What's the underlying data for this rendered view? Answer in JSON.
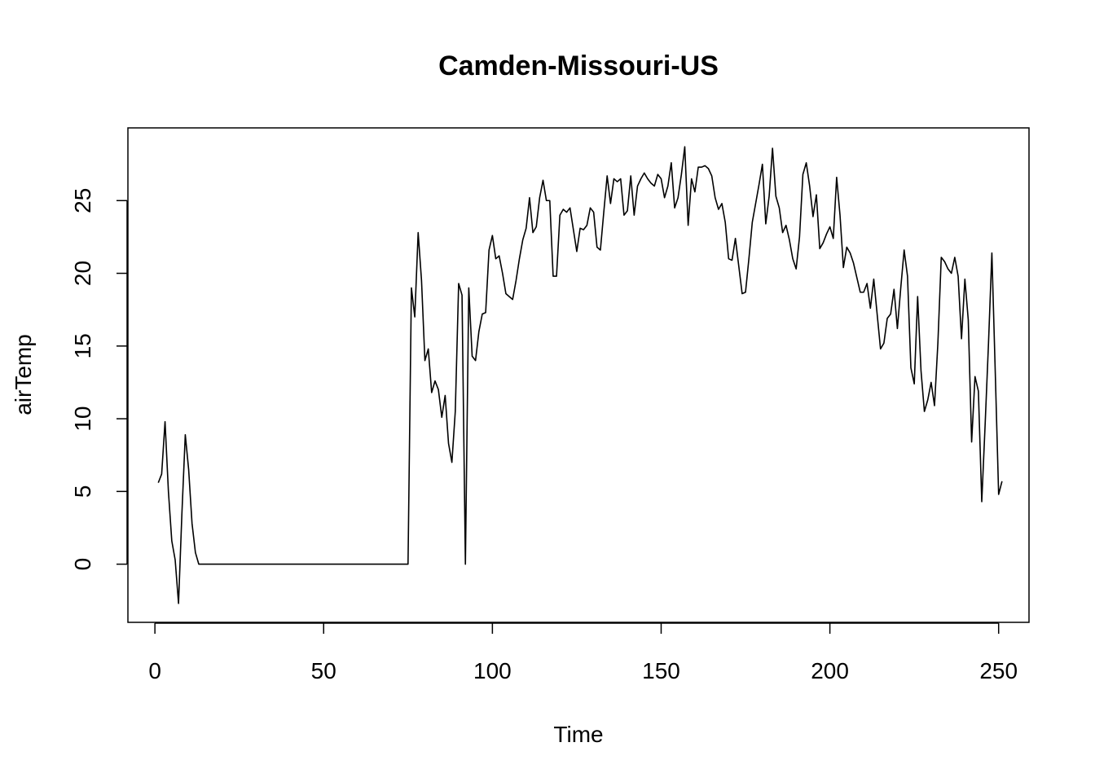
{
  "chart_data": {
    "type": "line",
    "title": "Camden-Missouri-US",
    "xlabel": "Time",
    "ylabel": "airTemp",
    "xlim": [
      -8,
      259
    ],
    "ylim": [
      -4,
      30
    ],
    "xticks": [
      0,
      50,
      100,
      150,
      200,
      250
    ],
    "yticks": [
      0,
      5,
      10,
      15,
      20,
      25
    ],
    "grid": false,
    "legend": "none",
    "series": [
      {
        "name": "airTemp",
        "x_start": 1,
        "values": [
          5.6,
          6.2,
          9.8,
          5.0,
          1.6,
          0.3,
          -2.7,
          3.5,
          8.9,
          6.5,
          2.8,
          0.8,
          0,
          0,
          0,
          0,
          0,
          0,
          0,
          0,
          0,
          0,
          0,
          0,
          0,
          0,
          0,
          0,
          0,
          0,
          0,
          0,
          0,
          0,
          0,
          0,
          0,
          0,
          0,
          0,
          0,
          0,
          0,
          0,
          0,
          0,
          0,
          0,
          0,
          0,
          0,
          0,
          0,
          0,
          0,
          0,
          0,
          0,
          0,
          0,
          0,
          0,
          0,
          0,
          0,
          0,
          0,
          0,
          0,
          0,
          0,
          0,
          0,
          0,
          0,
          19.0,
          17.0,
          22.8,
          19.5,
          14.0,
          14.8,
          11.8,
          12.6,
          12.0,
          10.1,
          11.6,
          8.3,
          7.0,
          10.5,
          19.3,
          18.5,
          0.0,
          19.0,
          14.3,
          14.0,
          16.0,
          17.2,
          17.3,
          21.6,
          22.6,
          21.0,
          21.2,
          20.0,
          18.6,
          18.4,
          18.2,
          19.5,
          21.0,
          22.3,
          23.1,
          25.2,
          22.8,
          23.2,
          25.2,
          26.4,
          25.0,
          25.0,
          19.8,
          19.8,
          24.0,
          24.4,
          24.2,
          24.5,
          23.0,
          21.5,
          23.1,
          23.0,
          23.3,
          24.5,
          24.2,
          21.8,
          21.6,
          24.2,
          26.7,
          24.8,
          26.5,
          26.3,
          26.5,
          24.0,
          24.3,
          26.7,
          24.0,
          26.0,
          26.5,
          26.9,
          26.5,
          26.2,
          26.0,
          26.8,
          26.5,
          25.2,
          26.0,
          27.6,
          24.5,
          25.2,
          26.8,
          28.7,
          23.3,
          26.5,
          25.6,
          27.3,
          27.3,
          27.4,
          27.2,
          26.7,
          25.2,
          24.4,
          24.8,
          23.5,
          21.0,
          20.9,
          22.4,
          20.5,
          18.6,
          18.7,
          21.0,
          23.5,
          24.8,
          26.1,
          27.5,
          23.4,
          25.3,
          28.6,
          25.3,
          24.5,
          22.8,
          23.3,
          22.3,
          21.0,
          20.3,
          22.5,
          26.8,
          27.6,
          26.0,
          23.9,
          25.4,
          21.7,
          22.1,
          22.7,
          23.2,
          22.4,
          26.6,
          24.0,
          20.4,
          21.8,
          21.4,
          20.7,
          19.7,
          18.7,
          18.7,
          19.3,
          17.6,
          19.6,
          17.2,
          14.8,
          15.2,
          16.9,
          17.2,
          18.9,
          16.2,
          19.0,
          21.6,
          19.8,
          13.5,
          12.4,
          18.4,
          13.3,
          10.5,
          11.3,
          12.5,
          10.9,
          15.2,
          21.1,
          20.8,
          20.3,
          20.0,
          21.1,
          19.8,
          15.5,
          19.6,
          16.8,
          8.4,
          12.9,
          11.9,
          4.3,
          9.6,
          15.2,
          21.4,
          13.2,
          4.8,
          5.7
        ]
      }
    ]
  }
}
